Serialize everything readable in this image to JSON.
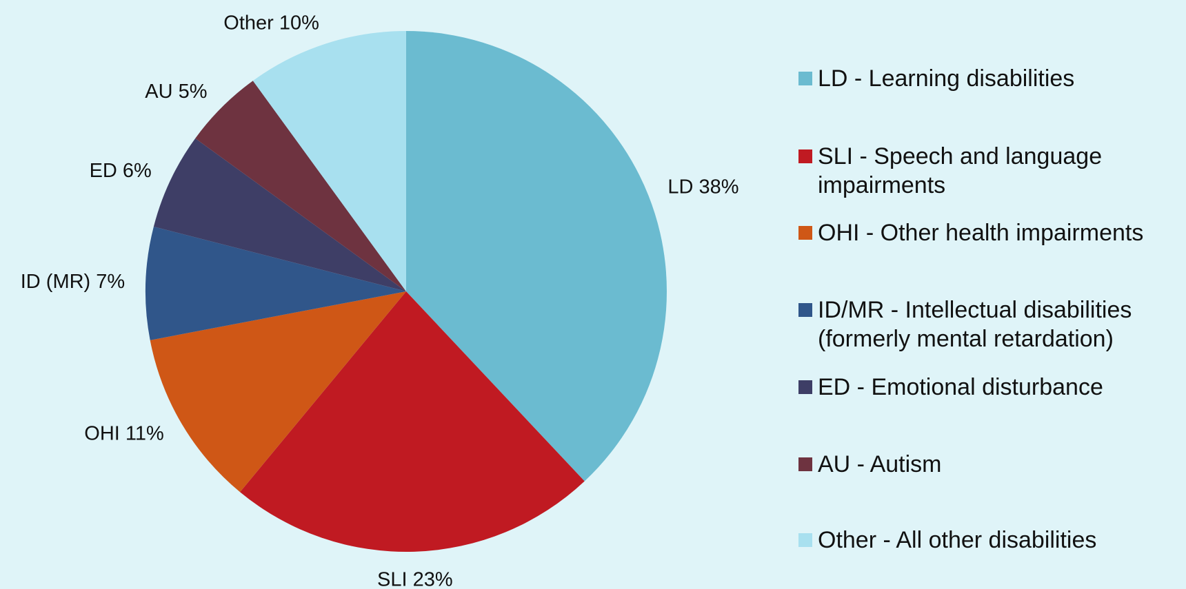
{
  "chart_data": {
    "type": "pie",
    "categories": [
      "LD - Learning disabilities",
      "SLI - Speech and language impairments",
      "OHI - Other health impairments",
      "ID/MR - Intellectual disabilities (formerly mental retardation)",
      "ED - Emotional disturbance",
      "AU - Autism",
      "Other - All other disabilities"
    ],
    "values": [
      38,
      23,
      11,
      7,
      6,
      5,
      10
    ],
    "value_labels": [
      "LD 38%",
      "SLI 23%",
      "OHI 11%",
      "ID (MR) 7%",
      "ED 6%",
      "AU 5%",
      "Other 10%"
    ],
    "colors": [
      "#6bbbd0",
      "#c01a22",
      "#cf5716",
      "#30568a",
      "#3e3e66",
      "#6e3340",
      "#a8e0ef"
    ],
    "legend": "right"
  }
}
